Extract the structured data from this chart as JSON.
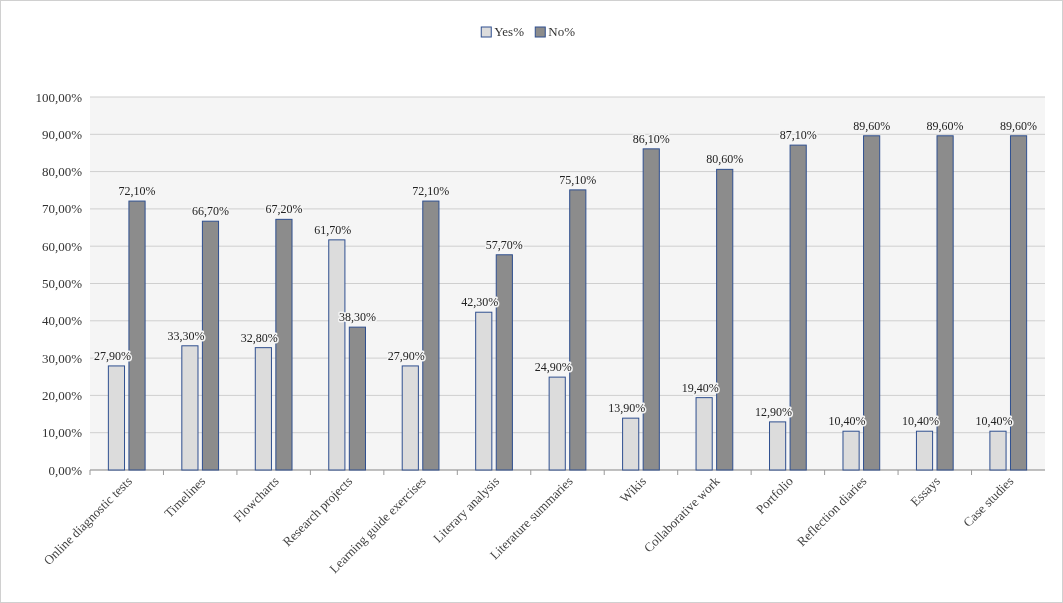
{
  "chart_data": {
    "type": "bar",
    "categories": [
      "Online diagnostic tests",
      "Timelines",
      "Flowcharts",
      "Research projects",
      "Learning guide exercises",
      "Literary analysis",
      "Literature summaries",
      "Wikis",
      "Collaborative work",
      "Portfolio",
      "Reflection diaries",
      "Essays",
      "Case studies"
    ],
    "series": [
      {
        "name": "Yes%",
        "color": "#dcdcdc",
        "values": [
          27.9,
          33.3,
          32.8,
          61.7,
          27.9,
          42.3,
          24.9,
          13.9,
          19.4,
          12.9,
          10.4,
          10.4,
          10.4
        ],
        "value_labels": [
          "27,90%",
          "33,30%",
          "32,80%",
          "61,70%",
          "27,90%",
          "42,30%",
          "24,90%",
          "13,90%",
          "19,40%",
          "12,90%",
          "10,40%",
          "10,40%",
          "10,40%"
        ]
      },
      {
        "name": "No%",
        "color": "#8c8c8c",
        "values": [
          72.1,
          66.7,
          67.2,
          38.3,
          72.1,
          57.7,
          75.1,
          86.1,
          80.6,
          87.1,
          89.6,
          89.6,
          89.6
        ],
        "value_labels": [
          "72,10%",
          "66,70%",
          "67,20%",
          "38,30%",
          "72,10%",
          "57,70%",
          "75,10%",
          "86,10%",
          "80,60%",
          "87,10%",
          "89,60%",
          "89,60%",
          "89,60%"
        ]
      }
    ],
    "ylim": [
      0,
      100
    ],
    "yticks": [
      {
        "value": 0,
        "label": "0,00%"
      },
      {
        "value": 10,
        "label": "10,00%"
      },
      {
        "value": 20,
        "label": "20,00%"
      },
      {
        "value": 30,
        "label": "30,00%"
      },
      {
        "value": 40,
        "label": "40,00%"
      },
      {
        "value": 50,
        "label": "50,00%"
      },
      {
        "value": 60,
        "label": "60,00%"
      },
      {
        "value": 70,
        "label": "70,00%"
      },
      {
        "value": 80,
        "label": "80,00%"
      },
      {
        "value": 90,
        "label": "90,00%"
      },
      {
        "value": 100,
        "label": "100,00%"
      }
    ],
    "grid": "y",
    "legend": "top"
  }
}
